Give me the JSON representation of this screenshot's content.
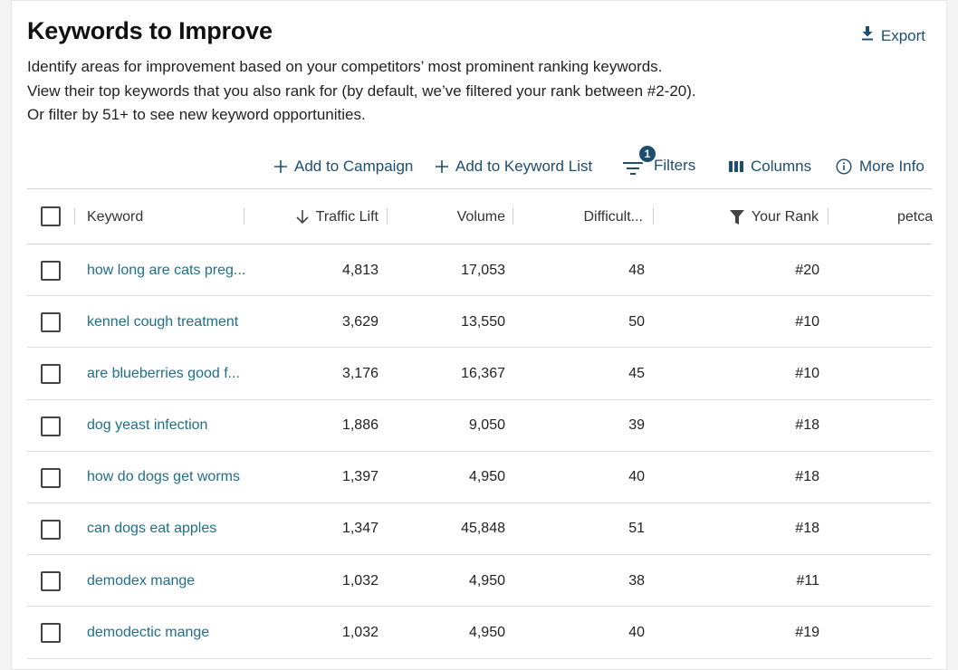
{
  "header": {
    "title": "Keywords to Improve",
    "export_label": "Export",
    "description": [
      "Identify areas for improvement based on your competitors’ most prominent ranking keywords.",
      "View their top keywords that you also rank for (by default, we’ve filtered your rank between #2-20).",
      "Or filter by 51+ to see new keyword opportunities."
    ]
  },
  "toolbar": {
    "add_to_campaign": "Add to Campaign",
    "add_to_keyword_list": "Add to Keyword List",
    "filters": "Filters",
    "filters_count": "1",
    "columns": "Columns",
    "more_info": "More Info"
  },
  "table": {
    "columns": [
      "Keyword",
      "Traffic Lift",
      "Volume",
      "Difficult...",
      "Your Rank",
      "petca"
    ],
    "rows": [
      {
        "keyword": "how long are cats preg...",
        "traffic_lift": "4,813",
        "volume": "17,053",
        "difficulty": "48",
        "rank": "#20"
      },
      {
        "keyword": "kennel cough treatment",
        "traffic_lift": "3,629",
        "volume": "13,550",
        "difficulty": "50",
        "rank": "#10"
      },
      {
        "keyword": "are blueberries good f...",
        "traffic_lift": "3,176",
        "volume": "16,367",
        "difficulty": "45",
        "rank": "#10"
      },
      {
        "keyword": "dog yeast infection",
        "traffic_lift": "1,886",
        "volume": "9,050",
        "difficulty": "39",
        "rank": "#18"
      },
      {
        "keyword": "how do dogs get worms",
        "traffic_lift": "1,397",
        "volume": "4,950",
        "difficulty": "40",
        "rank": "#18"
      },
      {
        "keyword": "can dogs eat apples",
        "traffic_lift": "1,347",
        "volume": "45,848",
        "difficulty": "51",
        "rank": "#18"
      },
      {
        "keyword": "demodex mange",
        "traffic_lift": "1,032",
        "volume": "4,950",
        "difficulty": "38",
        "rank": "#11"
      },
      {
        "keyword": "demodectic mange",
        "traffic_lift": "1,032",
        "volume": "4,950",
        "difficulty": "40",
        "rank": "#19"
      }
    ]
  },
  "colors": {
    "accent": "#1d4e70",
    "link": "#1f6e8a"
  }
}
